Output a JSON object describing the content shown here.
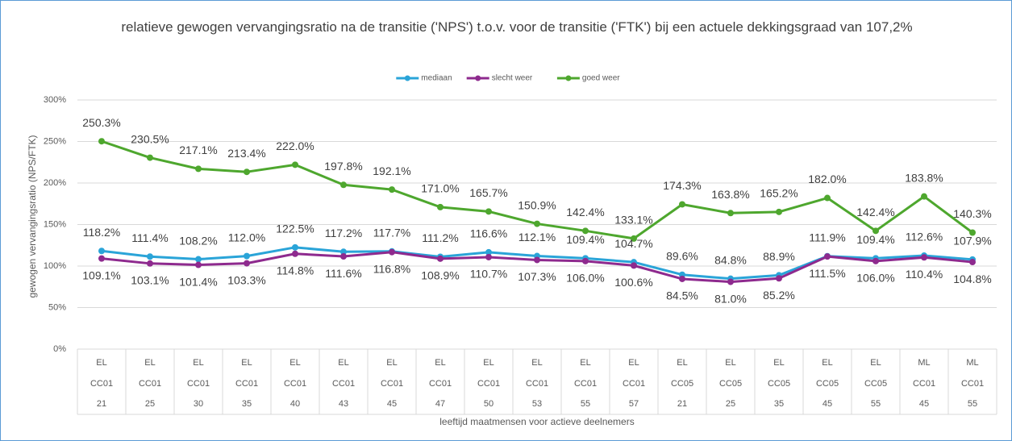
{
  "chart_data": {
    "type": "line",
    "title": "relatieve gewogen vervangingsratio na de transitie ('NPS') t.o.v. voor de transitie ('FTK') bij een actuele dekkingsgraad van 107,2%",
    "y_label": "gewogen vervangingsratio (NPS/FTK)",
    "x_label": "leeftijd maatmensen voor actieve deelnemers",
    "categories": [
      [
        "EL",
        "CC01",
        "21"
      ],
      [
        "EL",
        "CC01",
        "25"
      ],
      [
        "EL",
        "CC01",
        "30"
      ],
      [
        "EL",
        "CC01",
        "35"
      ],
      [
        "EL",
        "CC01",
        "40"
      ],
      [
        "EL",
        "CC01",
        "43"
      ],
      [
        "EL",
        "CC01",
        "45"
      ],
      [
        "EL",
        "CC01",
        "47"
      ],
      [
        "EL",
        "CC01",
        "50"
      ],
      [
        "EL",
        "CC01",
        "53"
      ],
      [
        "EL",
        "CC01",
        "55"
      ],
      [
        "EL",
        "CC01",
        "57"
      ],
      [
        "EL",
        "CC05",
        "21"
      ],
      [
        "EL",
        "CC05",
        "25"
      ],
      [
        "EL",
        "CC05",
        "35"
      ],
      [
        "EL",
        "CC05",
        "45"
      ],
      [
        "EL",
        "CC05",
        "55"
      ],
      [
        "ML",
        "CC01",
        "45"
      ],
      [
        "ML",
        "CC01",
        "55"
      ]
    ],
    "series": [
      {
        "name": "mediaan",
        "color": "#2aa4d8",
        "label_pos": "above",
        "values": [
          118.2,
          111.4,
          108.2,
          112.0,
          122.5,
          117.2,
          117.7,
          111.2,
          116.6,
          112.1,
          109.4,
          104.7,
          89.6,
          84.8,
          88.9,
          111.9,
          109.4,
          112.6,
          107.9
        ],
        "value_labels": [
          "118.2%",
          "111.4%",
          "108.2%",
          "112.0%",
          "122.5%",
          "117.2%",
          "117.7%",
          "111.2%",
          "116.6%",
          "112.1%",
          "109.4%",
          "104.7%",
          "89.6%",
          "84.8%",
          "88.9%",
          "111.9%",
          "109.4%",
          "112.6%",
          "107.9%"
        ]
      },
      {
        "name": "slecht weer",
        "color": "#8e2a8e",
        "label_pos": "below",
        "values": [
          109.1,
          103.1,
          101.4,
          103.3,
          114.8,
          111.6,
          116.8,
          108.9,
          110.7,
          107.3,
          106.0,
          100.6,
          84.5,
          81.0,
          85.2,
          111.5,
          106.0,
          110.4,
          104.8
        ],
        "value_labels": [
          "109.1%",
          "103.1%",
          "101.4%",
          "103.3%",
          "114.8%",
          "111.6%",
          "116.8%",
          "108.9%",
          "110.7%",
          "107.3%",
          "106.0%",
          "100.6%",
          "84.5%",
          "81.0%",
          "85.2%",
          "111.5%",
          "106.0%",
          "110.4%",
          "104.8%"
        ]
      },
      {
        "name": "goed weer",
        "color": "#4ea72e",
        "label_pos": "above",
        "values": [
          250.3,
          230.5,
          217.1,
          213.4,
          222.0,
          197.8,
          192.1,
          171.0,
          165.7,
          150.9,
          142.4,
          133.1,
          174.3,
          163.8,
          165.2,
          182.0,
          142.4,
          183.8,
          140.3
        ],
        "value_labels": [
          "250.3%",
          "230.5%",
          "217.1%",
          "213.4%",
          "222.0%",
          "197.8%",
          "192.1%",
          "171.0%",
          "165.7%",
          "150.9%",
          "142.4%",
          "133.1%",
          "174.3%",
          "163.8%",
          "165.2%",
          "182.0%",
          "142.4%",
          "183.8%",
          "140.3%"
        ]
      }
    ],
    "ylim": [
      0,
      300
    ],
    "yticks": [
      {
        "value": 0,
        "label": "0%"
      },
      {
        "value": 50,
        "label": "50%"
      },
      {
        "value": 100,
        "label": "100%"
      },
      {
        "value": 150,
        "label": "150%"
      },
      {
        "value": 200,
        "label": "200%"
      },
      {
        "value": 250,
        "label": "250%"
      },
      {
        "value": 300,
        "label": "300%"
      }
    ],
    "grid": true,
    "legend": "top"
  }
}
